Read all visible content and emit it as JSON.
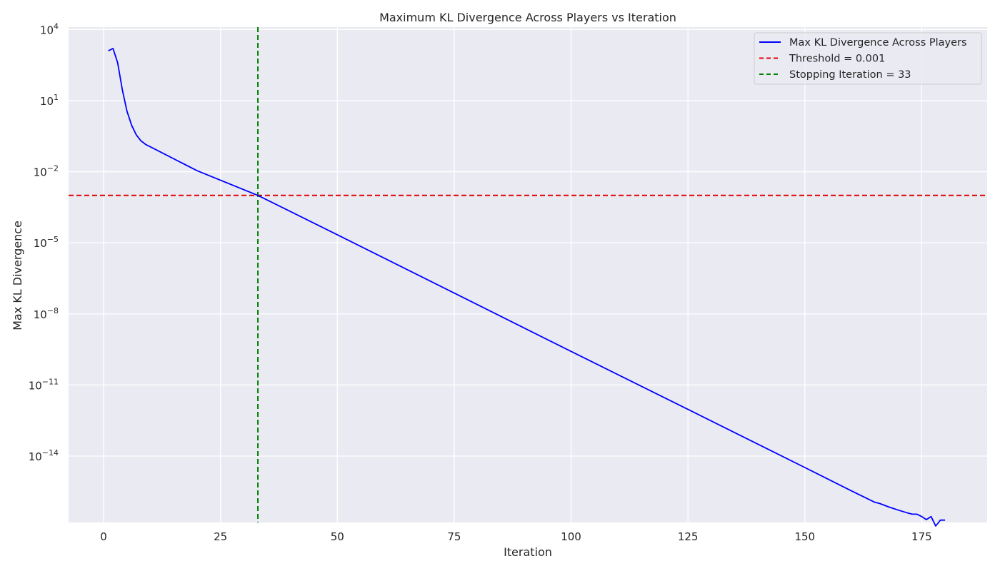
{
  "chart_data": {
    "type": "line",
    "title": "Maximum KL Divergence Across Players vs Iteration",
    "xlabel": "Iteration",
    "ylabel": "Max KL Divergence",
    "yscale": "log",
    "grid": true,
    "legend_position": "top-right",
    "xlim": [
      -7.5,
      189
    ],
    "ylim_log10": [
      -16.8,
      4.1
    ],
    "x_ticks": [
      0,
      25,
      50,
      75,
      100,
      125,
      150,
      175
    ],
    "y_ticks": [
      {
        "exp": 4,
        "base": "10",
        "sup": "4"
      },
      {
        "exp": 1,
        "base": "10",
        "sup": "1"
      },
      {
        "exp": -2,
        "base": "10",
        "sup": "−2"
      },
      {
        "exp": -5,
        "base": "10",
        "sup": "−5"
      },
      {
        "exp": -8,
        "base": "10",
        "sup": "−8"
      },
      {
        "exp": -11,
        "base": "10",
        "sup": "−11"
      },
      {
        "exp": -14,
        "base": "10",
        "sup": "−14"
      }
    ],
    "series": [
      {
        "name": "Max KL Divergence Across Players",
        "color": "#0000ff",
        "style": "solid",
        "x": [
          1,
          2,
          3,
          4,
          5,
          6,
          7,
          8,
          9,
          10,
          20,
          33,
          50,
          75,
          100,
          125,
          150,
          160,
          165,
          166,
          168,
          170,
          172,
          173,
          174,
          175,
          176,
          177,
          178,
          179,
          180
        ],
        "log10_y": [
          3.1,
          3.2,
          2.6,
          1.45,
          0.55,
          -0.05,
          -0.45,
          -0.7,
          -0.85,
          -0.95,
          -1.96,
          -3.0,
          -4.66,
          -7.12,
          -9.58,
          -12.03,
          -14.48,
          -15.47,
          -15.95,
          -16.0,
          -16.15,
          -16.28,
          -16.4,
          -16.45,
          -16.45,
          -16.55,
          -16.68,
          -16.55,
          -16.95,
          -16.7,
          -16.7
        ]
      }
    ],
    "reference_lines": [
      {
        "name": "Threshold = 0.001",
        "orientation": "horizontal",
        "value": 0.001,
        "color": "#e00000",
        "style": "dashed"
      },
      {
        "name": "Stopping Iteration = 33",
        "orientation": "vertical",
        "value": 33,
        "color": "#008000",
        "style": "dashed"
      }
    ],
    "colors": {
      "plot_background": "#eaeaf2",
      "grid": "#ffffff"
    }
  }
}
